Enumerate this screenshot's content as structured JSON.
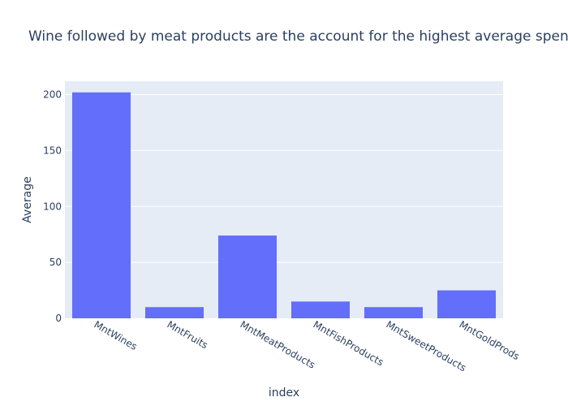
{
  "chart_data": {
    "type": "bar",
    "title": "Wine followed by meat products are the account for the highest average spending",
    "xlabel": "index",
    "ylabel": "Average",
    "categories": [
      "MntWines",
      "MntFruits",
      "MntMeatProducts",
      "MntFishProducts",
      "MntSweetProducts",
      "MntGoldProds"
    ],
    "values": [
      202,
      10,
      74,
      15,
      10,
      25
    ],
    "ylim": [
      0,
      212
    ],
    "yticks": [
      0,
      50,
      100,
      150,
      200
    ],
    "grid": true,
    "legend": "none",
    "colors": {
      "bar": "#636efa",
      "plot_background": "#e5ecf6",
      "grid": "#ffffff",
      "text": "#2a3f5f"
    }
  }
}
